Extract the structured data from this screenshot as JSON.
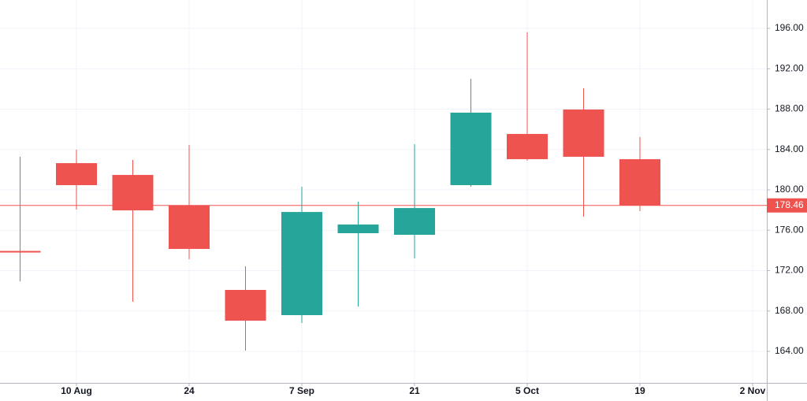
{
  "chart_data": {
    "type": "candlestick",
    "categories": [
      null,
      "10 Aug",
      null,
      "24",
      null,
      "7 Sep",
      null,
      "21",
      null,
      "5 Oct",
      null,
      "19",
      null,
      "2 Nov"
    ],
    "open": [
      173.95,
      182.65,
      181.48,
      178.44,
      170.09,
      167.59,
      175.71,
      175.55,
      180.47,
      185.54,
      187.96,
      183.04,
      null,
      null
    ],
    "high": [
      183.28,
      183.98,
      182.97,
      184.45,
      172.43,
      180.31,
      178.83,
      184.53,
      191.0,
      195.61,
      190.07,
      185.23,
      null,
      null
    ],
    "low": [
      170.95,
      178.05,
      168.92,
      173.13,
      164.08,
      166.81,
      168.45,
      173.21,
      180.31,
      182.89,
      177.35,
      177.89,
      null,
      null
    ],
    "close": [
      173.85,
      180.47,
      177.97,
      174.15,
      167.04,
      177.81,
      176.57,
      178.2,
      187.65,
      183.04,
      183.28,
      178.46,
      null,
      null
    ],
    "up_color": "#26a69a",
    "down_color": "#ef5350",
    "last_price": 178.46,
    "ylim": [
      160.88,
      198.81
    ],
    "yticks": [
      {
        "value": 164,
        "label": "164.00"
      },
      {
        "value": 168,
        "label": "168.00"
      },
      {
        "value": 172,
        "label": "172.00"
      },
      {
        "value": 176,
        "label": "176.00"
      },
      {
        "value": 180,
        "label": "180.00"
      },
      {
        "value": 184,
        "label": "184.00"
      },
      {
        "value": 188,
        "label": "188.00"
      },
      {
        "value": 192,
        "label": "192.00"
      },
      {
        "value": 196,
        "label": "196.00"
      }
    ],
    "grid": true
  }
}
